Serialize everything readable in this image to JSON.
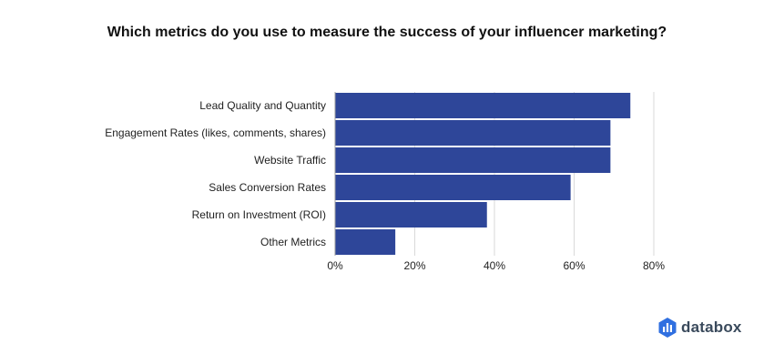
{
  "colors": {
    "bar": "#2e4699",
    "gridline": "#d9d9d9",
    "axis": "#9e9e9e",
    "logo": "#2f6fe0"
  },
  "brand": {
    "name": "databox",
    "icon": "databox-logo-icon"
  },
  "chart_data": {
    "type": "bar",
    "orientation": "horizontal",
    "title": "Which metrics do you use to measure the success of your influencer marketing?",
    "categories": [
      "Lead Quality and Quantity",
      "Engagement Rates (likes, comments, shares)",
      "Website Traffic",
      "Sales Conversion Rates",
      "Return on Investment (ROI)",
      "Other Metrics"
    ],
    "values": [
      74,
      69,
      69,
      59,
      38,
      15
    ],
    "value_unit": "%",
    "xlim": [
      0,
      80
    ],
    "xticks": [
      0,
      20,
      40,
      60,
      80
    ],
    "xtick_labels": [
      "0%",
      "20%",
      "40%",
      "60%",
      "80%"
    ],
    "grid": true
  }
}
